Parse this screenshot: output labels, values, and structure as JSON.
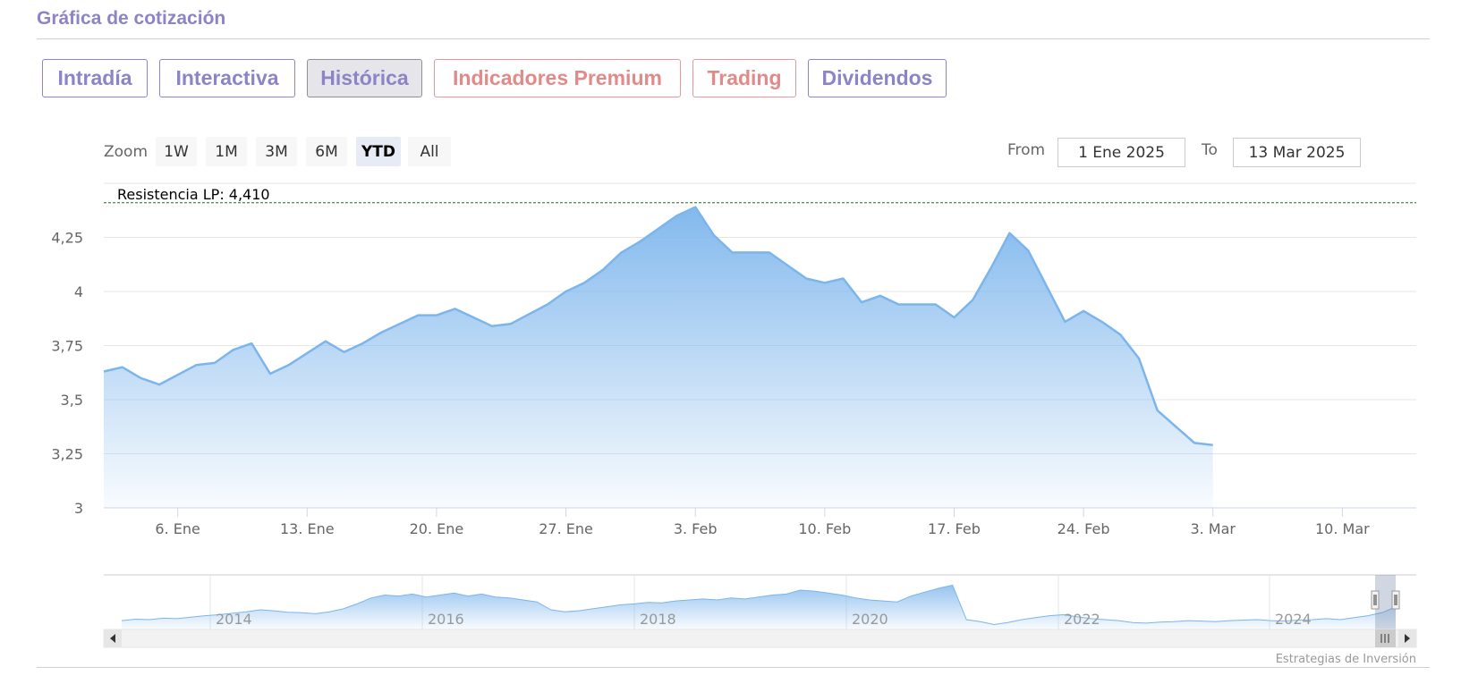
{
  "section": {
    "title": "Gráfica de cotización"
  },
  "tabs": [
    {
      "label": "Intradía",
      "style": "normal"
    },
    {
      "label": "Interactiva",
      "style": "normal"
    },
    {
      "label": "Histórica",
      "style": "active"
    },
    {
      "label": "Indicadores Premium",
      "style": "premium"
    },
    {
      "label": "Trading",
      "style": "premium"
    },
    {
      "label": "Dividendos",
      "style": "normal"
    }
  ],
  "zoom": {
    "label": "Zoom",
    "buttons": [
      "1W",
      "1M",
      "3M",
      "6M",
      "YTD",
      "All"
    ],
    "selected": "YTD"
  },
  "range": {
    "from_label": "From",
    "from_value": "1 Ene 2025",
    "to_label": "To",
    "to_value": "13 Mar 2025"
  },
  "colors": {
    "accent": "#8c84c6",
    "premium": "#e08a8a",
    "series_line": "#7cb5ec",
    "resistance_line": "#1a6e1a"
  },
  "chart_data": {
    "type": "area",
    "resistance": {
      "label": "Resistencia LP: 4,410",
      "value": 4.41
    },
    "ylim": [
      3,
      4.5
    ],
    "y_ticks": [
      {
        "value": 3,
        "label": "3"
      },
      {
        "value": 3.25,
        "label": "3,25"
      },
      {
        "value": 3.5,
        "label": "3,5"
      },
      {
        "value": 3.75,
        "label": "3,75"
      },
      {
        "value": 4,
        "label": "4"
      },
      {
        "value": 4.25,
        "label": "4,25"
      }
    ],
    "x_domain": [
      "2025-01-02",
      "2025-03-14"
    ],
    "x_ticks": [
      {
        "date": "2025-01-06",
        "label": "6. Ene"
      },
      {
        "date": "2025-01-13",
        "label": "13. Ene"
      },
      {
        "date": "2025-01-20",
        "label": "20. Ene"
      },
      {
        "date": "2025-01-27",
        "label": "27. Ene"
      },
      {
        "date": "2025-02-03",
        "label": "3. Feb"
      },
      {
        "date": "2025-02-10",
        "label": "10. Feb"
      },
      {
        "date": "2025-02-17",
        "label": "17. Feb"
      },
      {
        "date": "2025-02-24",
        "label": "24. Feb"
      },
      {
        "date": "2025-03-03",
        "label": "3. Mar"
      },
      {
        "date": "2025-03-10",
        "label": "10. Mar"
      }
    ],
    "series": [
      {
        "points": [
          [
            "2025-01-02",
            3.63
          ],
          [
            "2025-01-03",
            3.65
          ],
          [
            "2025-01-04",
            3.6
          ],
          [
            "2025-01-05",
            3.57
          ],
          [
            "2025-01-07",
            3.66
          ],
          [
            "2025-01-08",
            3.67
          ],
          [
            "2025-01-09",
            3.73
          ],
          [
            "2025-01-10",
            3.76
          ],
          [
            "2025-01-11",
            3.62
          ],
          [
            "2025-01-12",
            3.66
          ],
          [
            "2025-01-14",
            3.77
          ],
          [
            "2025-01-15",
            3.72
          ],
          [
            "2025-01-16",
            3.76
          ],
          [
            "2025-01-17",
            3.81
          ],
          [
            "2025-01-19",
            3.89
          ],
          [
            "2025-01-20",
            3.89
          ],
          [
            "2025-01-21",
            3.92
          ],
          [
            "2025-01-22",
            3.88
          ],
          [
            "2025-01-23",
            3.84
          ],
          [
            "2025-01-24",
            3.85
          ],
          [
            "2025-01-26",
            3.94
          ],
          [
            "2025-01-27",
            4.0
          ],
          [
            "2025-01-28",
            4.04
          ],
          [
            "2025-01-29",
            4.1
          ],
          [
            "2025-01-30",
            4.18
          ],
          [
            "2025-01-31",
            4.23
          ],
          [
            "2025-02-02",
            4.35
          ],
          [
            "2025-02-03",
            4.39
          ],
          [
            "2025-02-04",
            4.26
          ],
          [
            "2025-02-05",
            4.18
          ],
          [
            "2025-02-06",
            4.18
          ],
          [
            "2025-02-07",
            4.18
          ],
          [
            "2025-02-09",
            4.06
          ],
          [
            "2025-02-10",
            4.04
          ],
          [
            "2025-02-11",
            4.06
          ],
          [
            "2025-02-12",
            3.95
          ],
          [
            "2025-02-13",
            3.98
          ],
          [
            "2025-02-14",
            3.94
          ],
          [
            "2025-02-16",
            3.94
          ],
          [
            "2025-02-17",
            3.88
          ],
          [
            "2025-02-18",
            3.96
          ],
          [
            "2025-02-19",
            4.11
          ],
          [
            "2025-02-20",
            4.27
          ],
          [
            "2025-02-21",
            4.19
          ],
          [
            "2025-02-23",
            3.86
          ],
          [
            "2025-02-24",
            3.91
          ],
          [
            "2025-02-25",
            3.86
          ],
          [
            "2025-02-26",
            3.8
          ],
          [
            "2025-02-27",
            3.69
          ],
          [
            "2025-02-28",
            3.45
          ],
          [
            "2025-03-02",
            3.3
          ],
          [
            "2025-03-03",
            3.29
          ]
        ]
      }
    ],
    "navigator": {
      "year_labels": [
        "2014",
        "2016",
        "2018",
        "2020",
        "2022",
        "2024"
      ],
      "profile": [
        0.18,
        0.21,
        0.2,
        0.23,
        0.22,
        0.25,
        0.28,
        0.3,
        0.33,
        0.36,
        0.4,
        0.38,
        0.35,
        0.34,
        0.32,
        0.36,
        0.42,
        0.52,
        0.64,
        0.7,
        0.68,
        0.72,
        0.66,
        0.7,
        0.74,
        0.68,
        0.72,
        0.66,
        0.64,
        0.6,
        0.56,
        0.4,
        0.36,
        0.38,
        0.42,
        0.46,
        0.5,
        0.52,
        0.55,
        0.54,
        0.58,
        0.6,
        0.62,
        0.6,
        0.64,
        0.62,
        0.66,
        0.7,
        0.72,
        0.8,
        0.78,
        0.74,
        0.7,
        0.64,
        0.6,
        0.58,
        0.56,
        0.68,
        0.76,
        0.84,
        0.9,
        0.2,
        0.16,
        0.1,
        0.14,
        0.2,
        0.24,
        0.28,
        0.3,
        0.26,
        0.22,
        0.2,
        0.18,
        0.14,
        0.13,
        0.15,
        0.16,
        0.18,
        0.17,
        0.16,
        0.18,
        0.19,
        0.2,
        0.18,
        0.17,
        0.19,
        0.2,
        0.22,
        0.2,
        0.24,
        0.28,
        0.34,
        0.46
      ]
    }
  },
  "credit": "Estrategias de Inversión"
}
